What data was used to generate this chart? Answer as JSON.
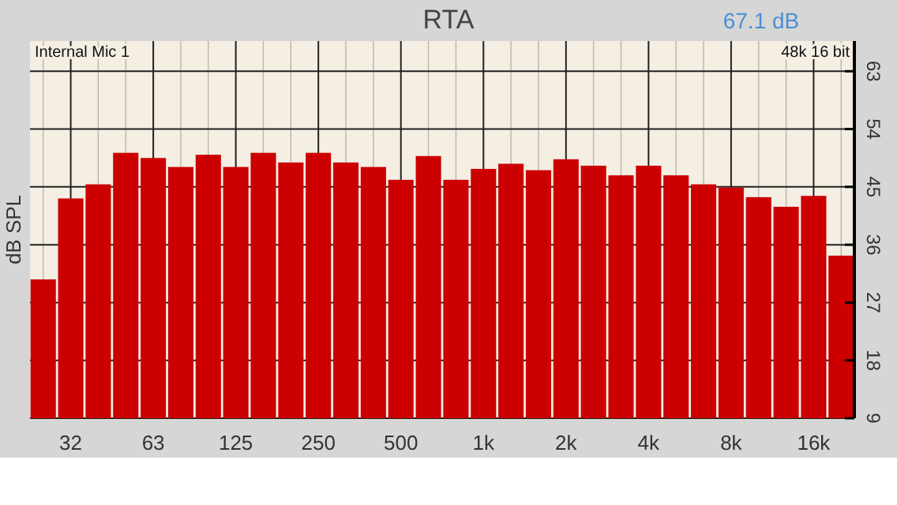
{
  "chart_data": {
    "type": "bar",
    "title": "RTA",
    "ylabel": "dB SPL",
    "annotations": [
      "67.1 dB",
      "Internal Mic 1",
      "48k 16 bit"
    ],
    "categories": [
      null,
      "32",
      null,
      null,
      "63",
      null,
      null,
      "125",
      null,
      null,
      "250",
      null,
      null,
      "500",
      null,
      null,
      "1k",
      null,
      null,
      "2k",
      null,
      null,
      "4k",
      null,
      null,
      "8k",
      null,
      null,
      "16k",
      null
    ],
    "values": [
      30.6,
      43.2,
      45.4,
      50.3,
      49.5,
      48.1,
      50.0,
      48.1,
      50.3,
      48.8,
      50.3,
      48.8,
      48.1,
      46.1,
      49.8,
      46.1,
      47.8,
      48.6,
      47.6,
      49.3,
      48.3,
      46.8,
      48.3,
      46.8,
      45.4,
      44.9,
      43.4,
      41.9,
      43.6,
      34.3
    ],
    "color": "#cc0000",
    "ylim": [
      9,
      67.7
    ],
    "yticks": [
      9,
      18,
      27,
      36,
      45,
      54,
      63
    ],
    "grid": true
  }
}
